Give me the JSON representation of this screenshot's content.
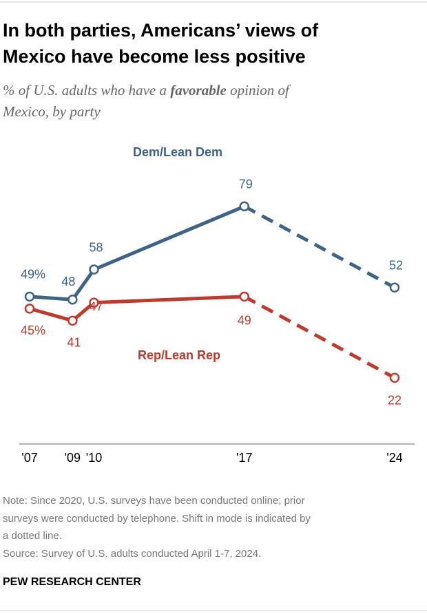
{
  "chart_data": {
    "type": "line",
    "title": [
      "In both parties, Americans’ views of",
      "Mexico have become less positive"
    ],
    "subtitle": {
      "before": "% of U.S. adults who have a ",
      "emphasis": "favorable",
      "after": " opinion of",
      "second_line": "Mexico, by party"
    },
    "x": [
      2007,
      2009,
      2010,
      2017,
      2024
    ],
    "xlim": [
      2007,
      2024
    ],
    "xticks": [
      {
        "value": 2007,
        "label": "'07"
      },
      {
        "value": 2009,
        "label": "'09"
      },
      {
        "value": 2010,
        "label": "'10"
      },
      {
        "value": 2017,
        "label": "'17"
      },
      {
        "value": 2024,
        "label": "'24"
      }
    ],
    "ylim": [
      0,
      100
    ],
    "dashed_after_x": 2017,
    "series": [
      {
        "name": "Dem/Lean Dem",
        "color": "#3e6384",
        "values": [
          49,
          48,
          58,
          79,
          52
        ],
        "value_labels": [
          "49%",
          "48",
          "58",
          "79",
          "52"
        ]
      },
      {
        "name": "Rep/Lean Rep",
        "color": "#be3a2c",
        "values": [
          45,
          41,
          47,
          49,
          22
        ],
        "value_labels": [
          "45%",
          "41",
          "47",
          "49",
          "22"
        ]
      }
    ],
    "note": [
      "Note: Since 2020, U.S. surveys have been conducted online; prior",
      "surveys were conducted by telephone. Shift in mode is indicated by",
      "a dotted line."
    ],
    "source": "Source: Survey of U.S. adults conducted April 1-7, 2024.",
    "footer": "PEW RESEARCH CENTER"
  }
}
